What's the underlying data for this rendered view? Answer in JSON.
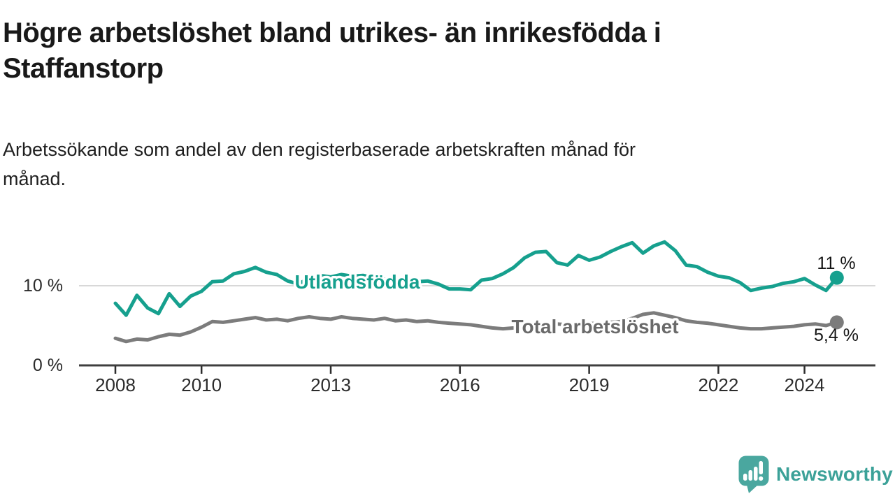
{
  "header": {
    "title": "Högre arbetslöshet bland utrikes- än inrikesfödda i\nStaffanstorp",
    "subtitle": "Arbetssökande som andel av den registerbaserade arbetskraften månad för\nmånad."
  },
  "chart_data": {
    "type": "line",
    "title": "Högre arbetslöshet bland utrikes- än inrikesfödda i Staffanstorp",
    "subtitle": "Arbetssökande som andel av den registerbaserade arbetskraften månad för månad.",
    "unit": "%",
    "grid": "single horizontal gridline at 10 %",
    "legend_position": "inline labels on lines",
    "xlim": [
      2007.1,
      2025.7
    ],
    "ylim": [
      0,
      17.5
    ],
    "y_gridline_value": 10,
    "y_tick_labels": [
      "0 %",
      "10 %"
    ],
    "x_tick_years": [
      2008,
      2010,
      2013,
      2016,
      2019,
      2022,
      2024
    ],
    "x": [
      2008.0,
      2008.25,
      2008.5,
      2008.75,
      2009.0,
      2009.25,
      2009.5,
      2009.75,
      2010.0,
      2010.25,
      2010.5,
      2010.75,
      2011.0,
      2011.25,
      2011.5,
      2011.75,
      2012.0,
      2012.25,
      2012.5,
      2012.75,
      2013.0,
      2013.25,
      2013.5,
      2013.75,
      2014.0,
      2014.25,
      2014.5,
      2014.75,
      2015.0,
      2015.25,
      2015.5,
      2015.75,
      2016.0,
      2016.25,
      2016.5,
      2016.75,
      2017.0,
      2017.25,
      2017.5,
      2017.75,
      2018.0,
      2018.25,
      2018.5,
      2018.75,
      2019.0,
      2019.25,
      2019.5,
      2019.75,
      2020.0,
      2020.25,
      2020.5,
      2020.75,
      2021.0,
      2021.25,
      2021.5,
      2021.75,
      2022.0,
      2022.25,
      2022.5,
      2022.75,
      2023.0,
      2023.25,
      2023.5,
      2023.75,
      2024.0,
      2024.25,
      2024.5,
      2024.75
    ],
    "series": [
      {
        "name": "Utlandsfödda",
        "color": "#16a08e",
        "label_color": "#16a08e",
        "end_label": "11 %",
        "end_value": 11.0,
        "values": [
          7.8,
          6.3,
          8.8,
          7.2,
          6.5,
          9.0,
          7.4,
          8.7,
          9.3,
          10.5,
          10.6,
          11.5,
          11.8,
          12.3,
          11.7,
          11.4,
          10.6,
          10.2,
          11.0,
          11.3,
          11.1,
          11.4,
          11.2,
          11.3,
          11.0,
          10.8,
          10.6,
          10.8,
          10.5,
          10.6,
          10.2,
          9.6,
          9.6,
          9.5,
          10.7,
          10.9,
          11.5,
          12.3,
          13.5,
          14.2,
          14.3,
          12.9,
          12.6,
          13.8,
          13.2,
          13.6,
          14.3,
          14.9,
          15.4,
          14.1,
          15.0,
          15.5,
          14.4,
          12.6,
          12.4,
          11.7,
          11.2,
          11.0,
          10.4,
          9.4,
          9.7,
          9.9,
          10.3,
          10.5,
          10.9,
          10.1,
          9.4,
          11.0
        ]
      },
      {
        "name": "Total arbetslöshet",
        "color": "#7c7c7c",
        "label_color": "#6a6a6a",
        "end_label": "5,4 %",
        "end_value": 5.4,
        "values": [
          3.4,
          3.0,
          3.3,
          3.2,
          3.6,
          3.9,
          3.8,
          4.2,
          4.8,
          5.5,
          5.4,
          5.6,
          5.8,
          6.0,
          5.7,
          5.8,
          5.6,
          5.9,
          6.1,
          5.9,
          5.8,
          6.1,
          5.9,
          5.8,
          5.7,
          5.9,
          5.6,
          5.7,
          5.5,
          5.6,
          5.4,
          5.3,
          5.2,
          5.1,
          4.9,
          4.7,
          4.6,
          4.7,
          4.9,
          5.0,
          5.1,
          5.2,
          5.1,
          5.2,
          5.3,
          5.2,
          5.4,
          5.5,
          5.9,
          6.4,
          6.6,
          6.3,
          6.0,
          5.6,
          5.4,
          5.3,
          5.1,
          4.9,
          4.7,
          4.6,
          4.6,
          4.7,
          4.8,
          4.9,
          5.1,
          5.2,
          5.0,
          5.4
        ]
      }
    ]
  },
  "branding": {
    "logo_text": "Newsworthy",
    "logo_color": "#4aa79f",
    "logo_text_color": "#3ba198"
  }
}
